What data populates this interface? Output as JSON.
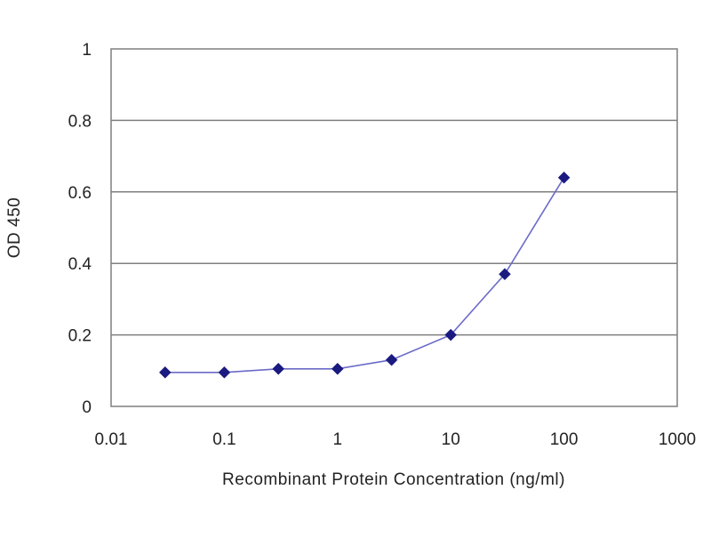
{
  "chart_data": {
    "type": "line",
    "title": "",
    "xlabel": "Recombinant Protein Concentration (ng/ml)",
    "ylabel": "OD 450",
    "xscale": "log",
    "xlim": [
      0.01,
      1000
    ],
    "ylim": [
      0,
      1
    ],
    "x_ticks": [
      0.01,
      0.1,
      1,
      10,
      100,
      1000
    ],
    "x_tick_labels": [
      "0.01",
      "0.1",
      "1",
      "10",
      "100",
      "1000"
    ],
    "y_ticks": [
      0,
      0.2,
      0.4,
      0.6,
      0.8,
      1
    ],
    "y_tick_labels": [
      "0",
      "0.2",
      "0.4",
      "0.6",
      "0.8",
      "1"
    ],
    "grid": "horizontal",
    "legend": "none",
    "series": [
      {
        "x": [
          0.03,
          0.1,
          0.3,
          1,
          3,
          10,
          30,
          100
        ],
        "y": [
          0.095,
          0.095,
          0.105,
          0.105,
          0.13,
          0.2,
          0.37,
          0.64
        ],
        "color": "#1a1a80",
        "marker": "diamond"
      }
    ]
  }
}
